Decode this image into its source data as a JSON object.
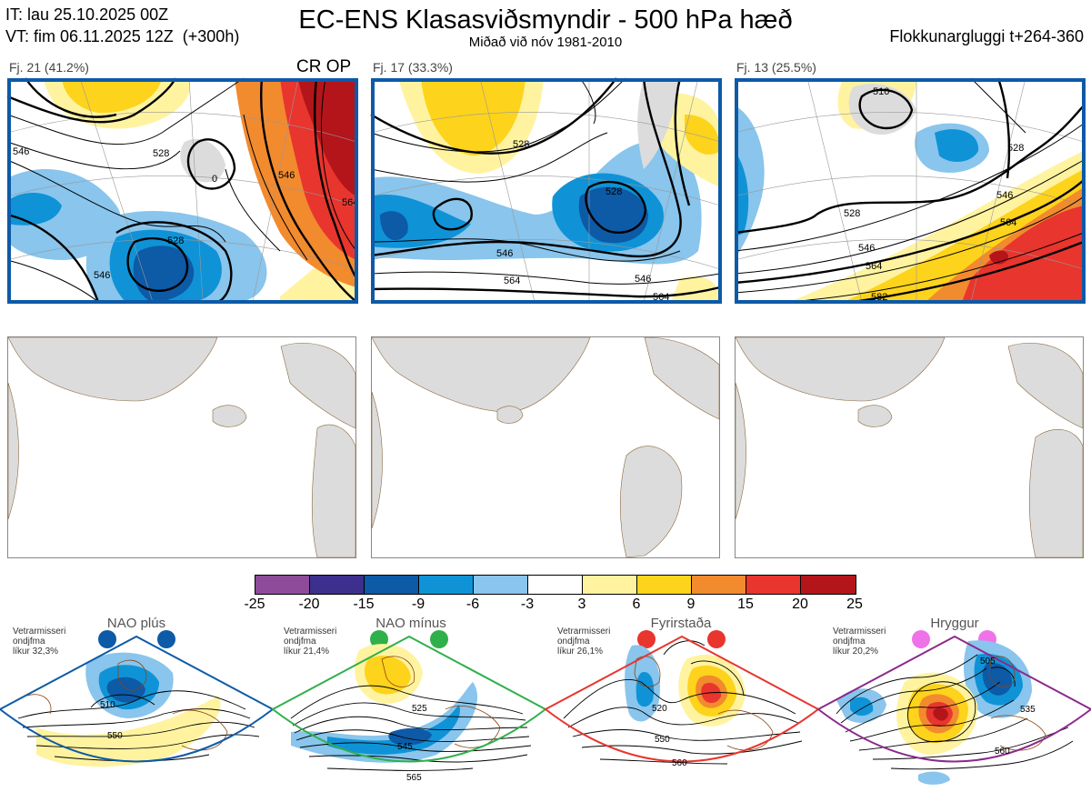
{
  "header": {
    "init_time": "IT: lau 25.10.2025 00Z",
    "valid_time": "VT: fim 06.11.2025 12Z  (+300h)",
    "title": "EC-ENS Klasasviðsmyndir - 500 hPa hæð",
    "subtitle": "Miðað við nóv 1981-2010",
    "window": "Flokkunargluggi t+264-360"
  },
  "clusters": [
    {
      "label": "Fj. 21 (41.2%)",
      "tag": "CR OP",
      "contours": [
        "546",
        "528",
        "0",
        "546",
        "564",
        "528",
        "546"
      ],
      "frame_color": "#0d5aa7"
    },
    {
      "label": "Fj. 17 (33.3%)",
      "tag": "",
      "contours": [
        "528",
        "528",
        "546",
        "546",
        "564",
        "564"
      ],
      "frame_color": "#0d5aa7"
    },
    {
      "label": "Fj. 13 (25.5%)",
      "tag": "",
      "contours": [
        "510",
        "528",
        "546",
        "564",
        "528",
        "546",
        "564",
        "582"
      ],
      "frame_color": "#0d5aa7"
    }
  ],
  "colorbar": {
    "ticks": [
      "-25",
      "-20",
      "-15",
      "-9",
      "-6",
      "-3",
      "3",
      "6",
      "9",
      "15",
      "20",
      "25"
    ],
    "colors": [
      "#8e4b9a",
      "#3d2f8e",
      "#0d5aa7",
      "#0f93d6",
      "#89c5ec",
      "#ffffff",
      "#fff3a0",
      "#fdd31c",
      "#f28a2e",
      "#e8352e",
      "#b3151b"
    ]
  },
  "regimes": [
    {
      "name": "NAO plús",
      "note": [
        "Vetrarmisseri",
        "ondjfma",
        "líkur 32,3%"
      ],
      "dot_color": "#0d5aa7",
      "frame_color": "#0d5aa7",
      "labels": [
        "510",
        "550"
      ]
    },
    {
      "name": "NAO mínus",
      "note": [
        "Vetrarmisseri",
        "ondjfma",
        "líkur 21,4%"
      ],
      "dot_color": "#2fb04a",
      "frame_color": "#2fb04a",
      "labels": [
        "525",
        "545",
        "565"
      ]
    },
    {
      "name": "Fyrirstaða",
      "note": [
        "Vetrarmisseri",
        "ondjfma",
        "líkur 26,1%"
      ],
      "dot_color": "#e8352e",
      "frame_color": "#e8352e",
      "labels": [
        "520",
        "550",
        "560"
      ]
    },
    {
      "name": "Hryggur",
      "note": [
        "Vetrarmisseri",
        "ondjfma",
        "líkur 20,2%"
      ],
      "dot_color": "#f072e8",
      "frame_color": "#8b2a8b",
      "labels": [
        "505",
        "535",
        "560"
      ]
    }
  ]
}
